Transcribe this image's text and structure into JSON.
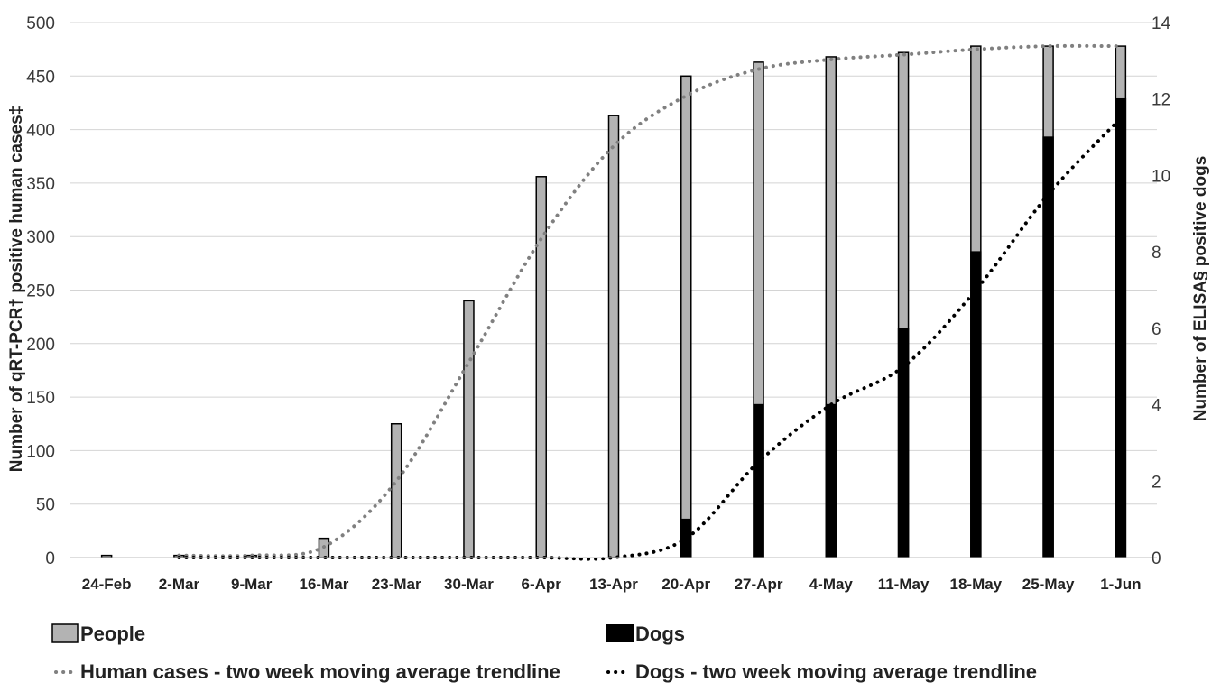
{
  "chart_data": {
    "type": "bar",
    "title": "",
    "categories": [
      "24-Feb",
      "2-Mar",
      "9-Mar",
      "16-Mar",
      "23-Mar",
      "30-Mar",
      "6-Apr",
      "13-Apr",
      "20-Apr",
      "27-Apr",
      "4-May",
      "11-May",
      "18-May",
      "25-May",
      "1-Jun"
    ],
    "xlabel": "",
    "ylabel": "Number of qRT-PCR† positive human cases‡",
    "y2label": "Number of ELISA§ positive dogs",
    "ylim": [
      0,
      500
    ],
    "y2lim": [
      0,
      14
    ],
    "yticks": [
      "0",
      "50",
      "100",
      "150",
      "200",
      "250",
      "300",
      "350",
      "400",
      "450",
      "500"
    ],
    "y2ticks": [
      "0",
      "2",
      "4",
      "6",
      "8",
      "10",
      "12",
      "14"
    ],
    "grid": true,
    "legend_position": "bottom",
    "series": [
      {
        "name": "People",
        "kind": "bar",
        "axis": "left",
        "color": "#b3b3b3",
        "values": [
          2,
          2,
          2,
          18,
          125,
          240,
          356,
          413,
          450,
          463,
          468,
          472,
          478,
          478,
          478
        ]
      },
      {
        "name": "Dogs",
        "kind": "bar",
        "axis": "right",
        "color": "#000000",
        "values": [
          0,
          0,
          0,
          0,
          0,
          0,
          0,
          0,
          1,
          4,
          4,
          6,
          8,
          11,
          12
        ]
      },
      {
        "name": "Human cases - two week moving average trendline",
        "kind": "trend",
        "axis": "left",
        "color": "#808080",
        "values": [
          null,
          2,
          2,
          10,
          71.5,
          182.5,
          298,
          384.5,
          431.5,
          456.5,
          465.5,
          470,
          475,
          478,
          478
        ]
      },
      {
        "name": "Dogs - two week moving average trendline",
        "kind": "trend",
        "axis": "right",
        "color": "#000000",
        "values": [
          null,
          0,
          0,
          0,
          0,
          0,
          0,
          0,
          0.5,
          2.5,
          4,
          5,
          7,
          9.5,
          11.5
        ]
      }
    ]
  }
}
